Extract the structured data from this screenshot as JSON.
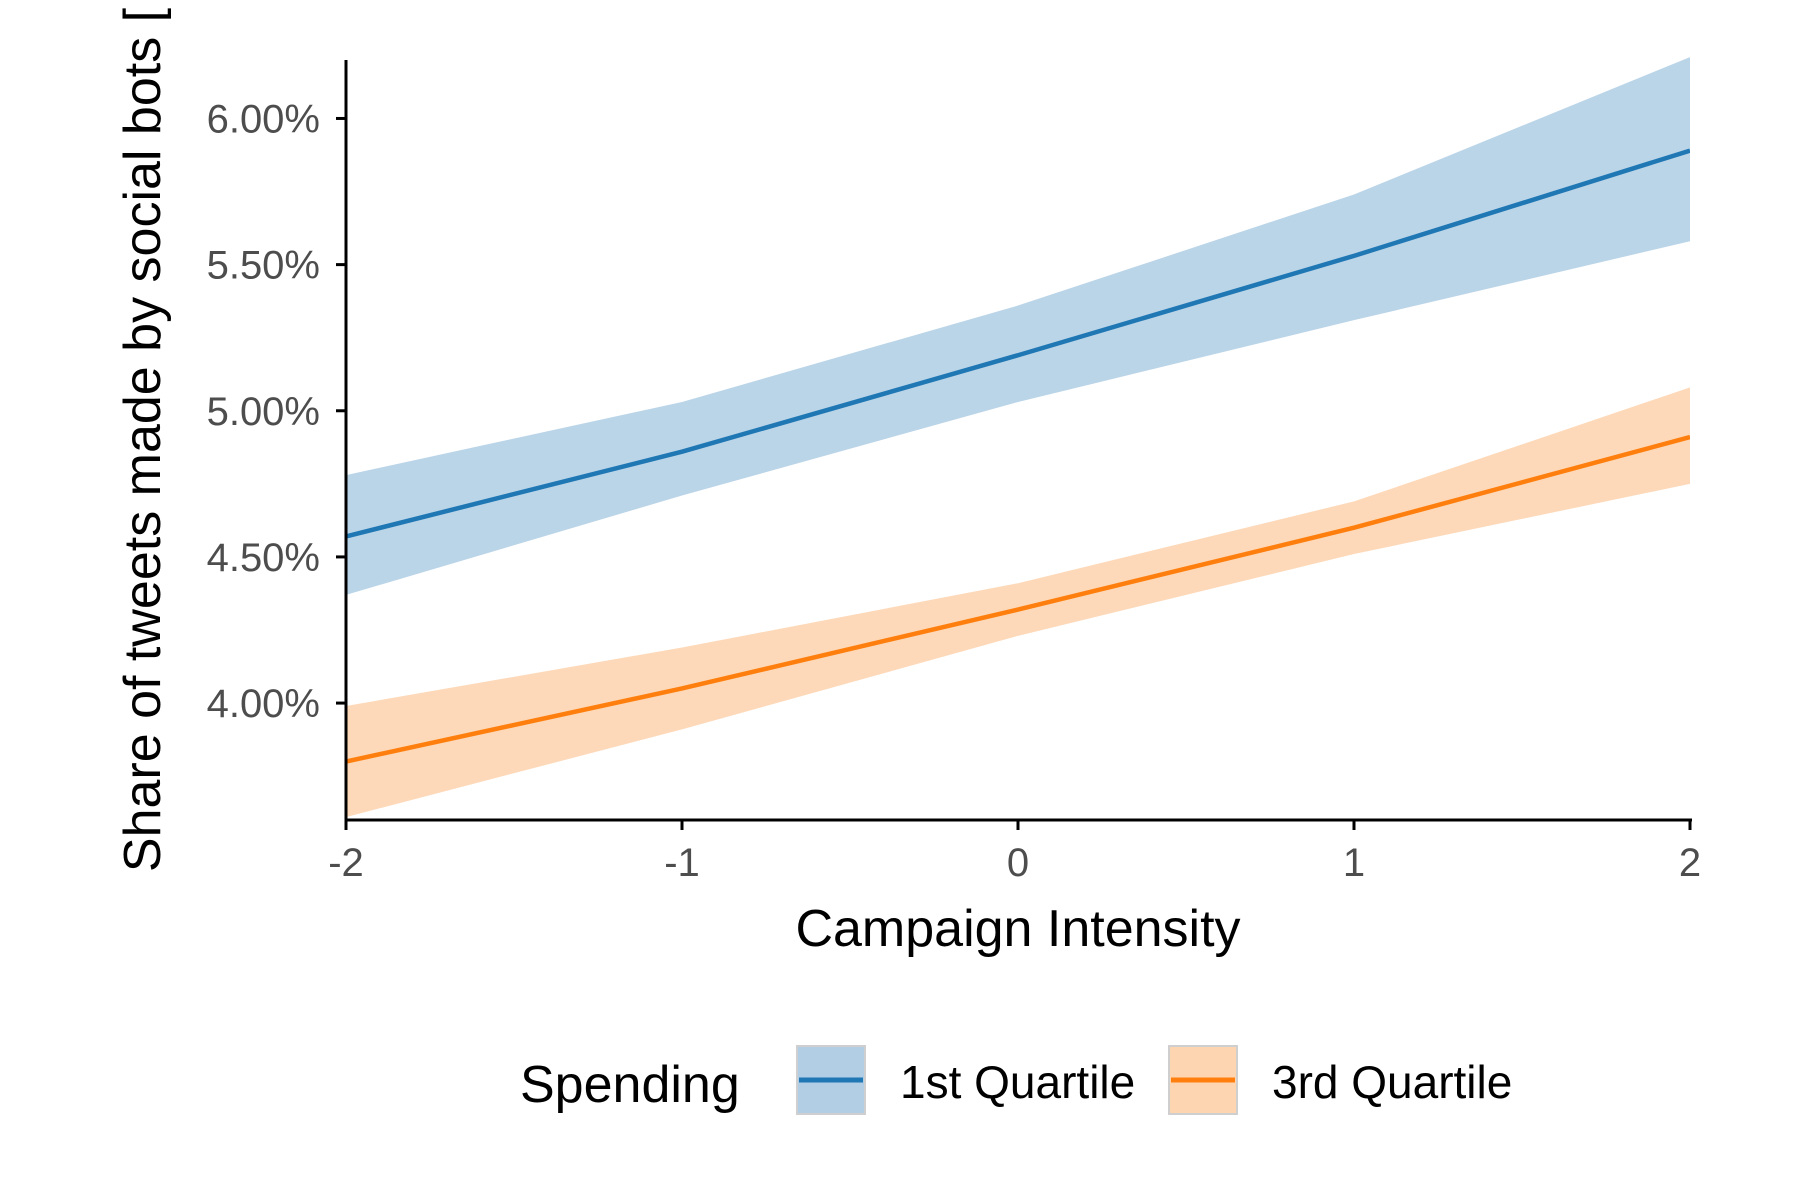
{
  "chart_data": {
    "type": "line",
    "xlabel": "Campaign Intensity",
    "ylabel": "Share of tweets made by social bots [",
    "xlim": [
      -2,
      2
    ],
    "ylim": [
      3.6,
      6.2
    ],
    "x_ticks": [
      -2,
      -1,
      0,
      1,
      2
    ],
    "x_tick_labels": [
      "-2",
      "-1",
      "0",
      "1",
      "2"
    ],
    "y_ticks": [
      4.0,
      4.5,
      5.0,
      5.5,
      6.0
    ],
    "y_tick_labels": [
      "4.00%",
      "4.50%",
      "5.00%",
      "5.50%",
      "6.00%"
    ],
    "grid": false,
    "legend_position": "bottom",
    "legend": {
      "title": "Spending",
      "entries": [
        "1st Quartile",
        "3rd Quartile"
      ]
    },
    "series": [
      {
        "name": "1st Quartile",
        "color": "#1f77b4",
        "band_color": "#a9c9e2",
        "x": [
          -2,
          -1,
          0,
          1,
          2
        ],
        "y": [
          4.57,
          4.86,
          5.19,
          5.53,
          5.89
        ],
        "lower": [
          4.37,
          4.71,
          5.03,
          5.31,
          5.58
        ],
        "upper": [
          4.78,
          5.03,
          5.36,
          5.74,
          6.21
        ]
      },
      {
        "name": "3rd Quartile",
        "color": "#ff7f0e",
        "band_color": "#fdd0a8",
        "x": [
          -2,
          -1,
          0,
          1,
          2
        ],
        "y": [
          3.8,
          4.05,
          4.32,
          4.6,
          4.91
        ],
        "lower": [
          3.61,
          3.91,
          4.23,
          4.51,
          4.75
        ],
        "upper": [
          3.99,
          4.19,
          4.41,
          4.69,
          5.08
        ]
      }
    ]
  }
}
